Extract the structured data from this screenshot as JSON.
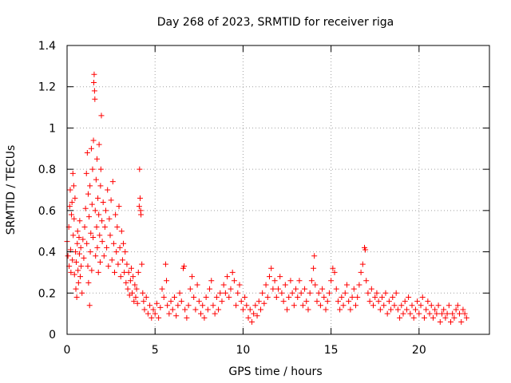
{
  "chart_data": {
    "type": "scatter",
    "title": "Day 268 of 2023, SRMTID for receiver riga",
    "xlabel": "GPS time / hours",
    "ylabel": "SRMTID / TECUs",
    "xlim": [
      0,
      24
    ],
    "ylim": [
      0,
      1.4
    ],
    "x_ticks": [
      0,
      5,
      10,
      15,
      20
    ],
    "x_tick_labels": [
      "0",
      "5",
      "10",
      "15",
      "20"
    ],
    "y_ticks": [
      0,
      0.2,
      0.4,
      0.6,
      0.8,
      1.0,
      1.2,
      1.4
    ],
    "y_tick_labels": [
      "0",
      "0.2",
      "0.4",
      "0.6",
      "0.8",
      "1",
      "1.2",
      "1.4"
    ],
    "grid": true,
    "marker": "+",
    "series_color": "#ff0000",
    "series": [
      {
        "name": "SRMTID",
        "points": [
          [
            0.0,
            0.45
          ],
          [
            0.05,
            0.38
          ],
          [
            0.1,
            0.52
          ],
          [
            0.12,
            0.33
          ],
          [
            0.15,
            0.62
          ],
          [
            0.18,
            0.7
          ],
          [
            0.2,
            0.41
          ],
          [
            0.22,
            0.3
          ],
          [
            0.25,
            0.58
          ],
          [
            0.28,
            0.64
          ],
          [
            0.3,
            0.36
          ],
          [
            0.33,
            0.78
          ],
          [
            0.35,
            0.48
          ],
          [
            0.38,
            0.72
          ],
          [
            0.4,
            0.56
          ],
          [
            0.42,
            0.29
          ],
          [
            0.45,
            0.66
          ],
          [
            0.48,
            0.4
          ],
          [
            0.5,
            0.22
          ],
          [
            0.52,
            0.35
          ],
          [
            0.55,
            0.18
          ],
          [
            0.58,
            0.44
          ],
          [
            0.6,
            0.5
          ],
          [
            0.62,
            0.31
          ],
          [
            0.65,
            0.25
          ],
          [
            0.68,
            0.47
          ],
          [
            0.7,
            0.39
          ],
          [
            0.72,
            0.55
          ],
          [
            0.75,
            0.28
          ],
          [
            0.78,
            0.42
          ],
          [
            0.8,
            0.33
          ],
          [
            0.85,
            0.2
          ],
          [
            0.9,
            0.46
          ],
          [
            0.95,
            0.37
          ],
          [
            1.0,
            0.52
          ],
          [
            1.05,
            0.61
          ],
          [
            1.1,
            0.78
          ],
          [
            1.12,
            0.44
          ],
          [
            1.15,
            0.88
          ],
          [
            1.18,
            0.33
          ],
          [
            1.2,
            0.68
          ],
          [
            1.22,
            0.25
          ],
          [
            1.25,
            0.57
          ],
          [
            1.28,
            0.14
          ],
          [
            1.3,
            0.72
          ],
          [
            1.32,
            0.4
          ],
          [
            1.35,
            0.49
          ],
          [
            1.38,
            0.9
          ],
          [
            1.4,
            0.31
          ],
          [
            1.42,
            0.63
          ],
          [
            1.45,
            0.8
          ],
          [
            1.48,
            0.47
          ],
          [
            1.5,
            0.94
          ],
          [
            1.52,
            1.22
          ],
          [
            1.54,
            1.26
          ],
          [
            1.56,
            1.18
          ],
          [
            1.58,
            1.14
          ],
          [
            1.6,
            0.6
          ],
          [
            1.62,
            0.38
          ],
          [
            1.65,
            0.75
          ],
          [
            1.68,
            0.52
          ],
          [
            1.7,
            0.85
          ],
          [
            1.72,
            0.42
          ],
          [
            1.75,
            0.66
          ],
          [
            1.78,
            0.3
          ],
          [
            1.8,
            0.58
          ],
          [
            1.82,
            0.92
          ],
          [
            1.85,
            0.48
          ],
          [
            1.88,
            0.35
          ],
          [
            1.9,
            0.72
          ],
          [
            1.92,
            0.8
          ],
          [
            1.95,
            1.06
          ],
          [
            1.98,
            0.55
          ],
          [
            2.0,
            0.45
          ],
          [
            2.05,
            0.64
          ],
          [
            2.1,
            0.38
          ],
          [
            2.15,
            0.52
          ],
          [
            2.2,
            0.6
          ],
          [
            2.25,
            0.42
          ],
          [
            2.3,
            0.7
          ],
          [
            2.35,
            0.33
          ],
          [
            2.4,
            0.56
          ],
          [
            2.45,
            0.48
          ],
          [
            2.5,
            0.65
          ],
          [
            2.55,
            0.36
          ],
          [
            2.6,
            0.74
          ],
          [
            2.65,
            0.44
          ],
          [
            2.7,
            0.3
          ],
          [
            2.75,
            0.58
          ],
          [
            2.8,
            0.4
          ],
          [
            2.85,
            0.52
          ],
          [
            2.9,
            0.34
          ],
          [
            2.95,
            0.62
          ],
          [
            3.0,
            0.42
          ],
          [
            3.05,
            0.28
          ],
          [
            3.1,
            0.5
          ],
          [
            3.15,
            0.36
          ],
          [
            3.2,
            0.44
          ],
          [
            3.25,
            0.3
          ],
          [
            3.3,
            0.4
          ],
          [
            3.35,
            0.25
          ],
          [
            3.4,
            0.34
          ],
          [
            3.45,
            0.22
          ],
          [
            3.5,
            0.3
          ],
          [
            3.55,
            0.19
          ],
          [
            3.6,
            0.26
          ],
          [
            3.65,
            0.32
          ],
          [
            3.7,
            0.2
          ],
          [
            3.75,
            0.28
          ],
          [
            3.8,
            0.16
          ],
          [
            3.85,
            0.24
          ],
          [
            3.9,
            0.18
          ],
          [
            3.95,
            0.22
          ],
          [
            4.0,
            0.15
          ],
          [
            4.05,
            0.3
          ],
          [
            4.1,
            0.62
          ],
          [
            4.12,
            0.8
          ],
          [
            4.15,
            0.66
          ],
          [
            4.18,
            0.6
          ],
          [
            4.2,
            0.58
          ],
          [
            4.25,
            0.34
          ],
          [
            4.3,
            0.2
          ],
          [
            4.35,
            0.16
          ],
          [
            4.4,
            0.12
          ],
          [
            4.5,
            0.18
          ],
          [
            4.6,
            0.1
          ],
          [
            4.7,
            0.14
          ],
          [
            4.8,
            0.08
          ],
          [
            4.9,
            0.12
          ],
          [
            5.0,
            0.1
          ],
          [
            5.1,
            0.15
          ],
          [
            5.2,
            0.08
          ],
          [
            5.3,
            0.13
          ],
          [
            5.4,
            0.22
          ],
          [
            5.5,
            0.18
          ],
          [
            5.6,
            0.34
          ],
          [
            5.65,
            0.26
          ],
          [
            5.7,
            0.14
          ],
          [
            5.8,
            0.1
          ],
          [
            5.9,
            0.16
          ],
          [
            6.0,
            0.12
          ],
          [
            6.1,
            0.18
          ],
          [
            6.2,
            0.09
          ],
          [
            6.3,
            0.14
          ],
          [
            6.4,
            0.2
          ],
          [
            6.5,
            0.16
          ],
          [
            6.6,
            0.32
          ],
          [
            6.65,
            0.33
          ],
          [
            6.7,
            0.12
          ],
          [
            6.8,
            0.08
          ],
          [
            6.9,
            0.14
          ],
          [
            7.0,
            0.22
          ],
          [
            7.1,
            0.28
          ],
          [
            7.2,
            0.18
          ],
          [
            7.3,
            0.12
          ],
          [
            7.4,
            0.24
          ],
          [
            7.5,
            0.16
          ],
          [
            7.6,
            0.1
          ],
          [
            7.7,
            0.14
          ],
          [
            7.8,
            0.08
          ],
          [
            7.9,
            0.18
          ],
          [
            8.0,
            0.12
          ],
          [
            8.1,
            0.22
          ],
          [
            8.2,
            0.26
          ],
          [
            8.3,
            0.14
          ],
          [
            8.4,
            0.1
          ],
          [
            8.5,
            0.18
          ],
          [
            8.6,
            0.12
          ],
          [
            8.7,
            0.2
          ],
          [
            8.8,
            0.16
          ],
          [
            8.9,
            0.24
          ],
          [
            9.0,
            0.2
          ],
          [
            9.1,
            0.28
          ],
          [
            9.2,
            0.18
          ],
          [
            9.3,
            0.22
          ],
          [
            9.4,
            0.3
          ],
          [
            9.5,
            0.26
          ],
          [
            9.6,
            0.14
          ],
          [
            9.7,
            0.2
          ],
          [
            9.8,
            0.24
          ],
          [
            9.9,
            0.16
          ],
          [
            10.0,
            0.12
          ],
          [
            10.1,
            0.18
          ],
          [
            10.2,
            0.14
          ],
          [
            10.3,
            0.08
          ],
          [
            10.4,
            0.12
          ],
          [
            10.5,
            0.06
          ],
          [
            10.6,
            0.1
          ],
          [
            10.7,
            0.14
          ],
          [
            10.8,
            0.09
          ],
          [
            10.9,
            0.16
          ],
          [
            11.0,
            0.12
          ],
          [
            11.1,
            0.2
          ],
          [
            11.2,
            0.15
          ],
          [
            11.3,
            0.24
          ],
          [
            11.4,
            0.18
          ],
          [
            11.5,
            0.28
          ],
          [
            11.6,
            0.32
          ],
          [
            11.7,
            0.22
          ],
          [
            11.8,
            0.26
          ],
          [
            11.9,
            0.18
          ],
          [
            12.0,
            0.22
          ],
          [
            12.1,
            0.28
          ],
          [
            12.2,
            0.2
          ],
          [
            12.3,
            0.16
          ],
          [
            12.4,
            0.24
          ],
          [
            12.5,
            0.12
          ],
          [
            12.6,
            0.18
          ],
          [
            12.7,
            0.26
          ],
          [
            12.8,
            0.2
          ],
          [
            12.9,
            0.14
          ],
          [
            13.0,
            0.22
          ],
          [
            13.1,
            0.18
          ],
          [
            13.2,
            0.26
          ],
          [
            13.3,
            0.2
          ],
          [
            13.4,
            0.14
          ],
          [
            13.5,
            0.22
          ],
          [
            13.6,
            0.16
          ],
          [
            13.7,
            0.12
          ],
          [
            13.8,
            0.2
          ],
          [
            13.9,
            0.26
          ],
          [
            14.0,
            0.32
          ],
          [
            14.05,
            0.38
          ],
          [
            14.1,
            0.24
          ],
          [
            14.2,
            0.16
          ],
          [
            14.3,
            0.2
          ],
          [
            14.4,
            0.14
          ],
          [
            14.5,
            0.22
          ],
          [
            14.6,
            0.18
          ],
          [
            14.7,
            0.12
          ],
          [
            14.8,
            0.16
          ],
          [
            14.9,
            0.2
          ],
          [
            15.0,
            0.26
          ],
          [
            15.1,
            0.32
          ],
          [
            15.2,
            0.3
          ],
          [
            15.3,
            0.22
          ],
          [
            15.4,
            0.16
          ],
          [
            15.5,
            0.12
          ],
          [
            15.6,
            0.18
          ],
          [
            15.7,
            0.14
          ],
          [
            15.8,
            0.2
          ],
          [
            15.9,
            0.24
          ],
          [
            16.0,
            0.16
          ],
          [
            16.1,
            0.12
          ],
          [
            16.2,
            0.18
          ],
          [
            16.3,
            0.22
          ],
          [
            16.4,
            0.14
          ],
          [
            16.5,
            0.18
          ],
          [
            16.6,
            0.24
          ],
          [
            16.7,
            0.3
          ],
          [
            16.8,
            0.34
          ],
          [
            16.9,
            0.42
          ],
          [
            16.95,
            0.41
          ],
          [
            17.0,
            0.26
          ],
          [
            17.1,
            0.2
          ],
          [
            17.2,
            0.16
          ],
          [
            17.3,
            0.22
          ],
          [
            17.4,
            0.14
          ],
          [
            17.5,
            0.18
          ],
          [
            17.6,
            0.2
          ],
          [
            17.7,
            0.16
          ],
          [
            17.8,
            0.12
          ],
          [
            17.9,
            0.18
          ],
          [
            18.0,
            0.14
          ],
          [
            18.1,
            0.2
          ],
          [
            18.2,
            0.1
          ],
          [
            18.3,
            0.16
          ],
          [
            18.4,
            0.12
          ],
          [
            18.5,
            0.18
          ],
          [
            18.6,
            0.14
          ],
          [
            18.7,
            0.2
          ],
          [
            18.8,
            0.12
          ],
          [
            18.9,
            0.08
          ],
          [
            19.0,
            0.14
          ],
          [
            19.1,
            0.1
          ],
          [
            19.2,
            0.16
          ],
          [
            19.3,
            0.12
          ],
          [
            19.4,
            0.18
          ],
          [
            19.5,
            0.1
          ],
          [
            19.6,
            0.14
          ],
          [
            19.7,
            0.08
          ],
          [
            19.8,
            0.12
          ],
          [
            19.9,
            0.16
          ],
          [
            20.0,
            0.1
          ],
          [
            20.1,
            0.14
          ],
          [
            20.2,
            0.18
          ],
          [
            20.3,
            0.08
          ],
          [
            20.4,
            0.12
          ],
          [
            20.5,
            0.16
          ],
          [
            20.6,
            0.1
          ],
          [
            20.7,
            0.14
          ],
          [
            20.8,
            0.08
          ],
          [
            20.9,
            0.12
          ],
          [
            21.0,
            0.1
          ],
          [
            21.1,
            0.14
          ],
          [
            21.2,
            0.06
          ],
          [
            21.3,
            0.1
          ],
          [
            21.4,
            0.12
          ],
          [
            21.5,
            0.08
          ],
          [
            21.6,
            0.1
          ],
          [
            21.7,
            0.14
          ],
          [
            21.8,
            0.06
          ],
          [
            21.9,
            0.1
          ],
          [
            22.0,
            0.08
          ],
          [
            22.1,
            0.12
          ],
          [
            22.2,
            0.14
          ],
          [
            22.3,
            0.1
          ],
          [
            22.4,
            0.06
          ],
          [
            22.5,
            0.12
          ],
          [
            22.6,
            0.1
          ],
          [
            22.7,
            0.08
          ]
        ]
      }
    ]
  }
}
